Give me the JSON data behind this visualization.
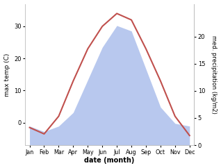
{
  "months": [
    "Jan",
    "Feb",
    "Mar",
    "Apr",
    "May",
    "Jun",
    "Jul",
    "Aug",
    "Sep",
    "Oct",
    "Nov",
    "Dec"
  ],
  "temp": [
    -1.5,
    -3.5,
    2.0,
    13.0,
    23.0,
    30.0,
    34.0,
    32.0,
    23.0,
    13.0,
    2.0,
    -4.0
  ],
  "precip": [
    3.5,
    2.5,
    3.5,
    6.0,
    12.0,
    18.0,
    22.0,
    21.0,
    14.0,
    7.0,
    4.0,
    3.5
  ],
  "temp_color": "#c0504d",
  "precip_fill_color": "#b8c8ee",
  "temp_ylim": [
    -7,
    37
  ],
  "precip_ylim": [
    0,
    26.0
  ],
  "precip_yticks": [
    0,
    5,
    10,
    15,
    20
  ],
  "temp_yticks": [
    0,
    10,
    20,
    30
  ],
  "xlabel": "date (month)",
  "ylabel_left": "max temp (C)",
  "ylabel_right": "med. precipitation (kg/m2)",
  "background_color": "#ffffff",
  "spine_color": "#bbbbbb"
}
